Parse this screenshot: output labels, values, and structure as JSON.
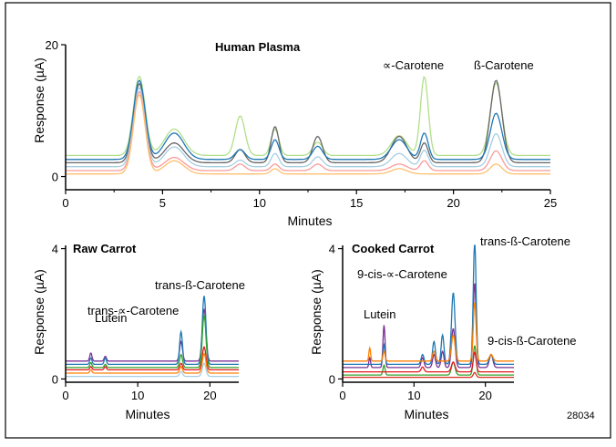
{
  "figure_id": "28034",
  "colors": {
    "frame": "#000000",
    "series": [
      "#7b3294",
      "#1f78b4",
      "#33a02c",
      "#e31a1c",
      "#ff7f00",
      "#d7301f",
      "#a6cee3",
      "#fdbf6f",
      "#b2df8a",
      "#fb9a99",
      "#666666",
      "#e6ab02"
    ]
  },
  "chart_data": [
    {
      "id": "top",
      "type": "line",
      "title": "Human Plasma",
      "xlabel": "Minutes",
      "ylabel": "Response (µA)",
      "xlim": [
        0,
        25
      ],
      "ylim": [
        -2,
        20
      ],
      "xticks": [
        0,
        5,
        10,
        15,
        20,
        25
      ],
      "yticks": [
        0,
        20
      ],
      "annotations": [
        {
          "text": "∝-Carotene",
          "x": 18.5,
          "y": 12.5
        },
        {
          "text": "ß-Carotene",
          "x": 22.2,
          "y": 12.5
        }
      ],
      "series": [
        {
          "color": "#b2df8a",
          "baseline": 3.2,
          "peaks": [
            [
              3.8,
              12,
              0.3
            ],
            [
              5.6,
              4,
              0.5
            ],
            [
              9.0,
              6,
              0.25
            ],
            [
              10.8,
              4,
              0.2
            ],
            [
              13,
              2,
              0.25
            ],
            [
              17.2,
              3,
              0.4
            ],
            [
              18.5,
              12,
              0.2
            ],
            [
              22.2,
              11,
              0.3
            ]
          ]
        },
        {
          "color": "#666666",
          "baseline": 2.1,
          "peaks": [
            [
              3.8,
              12,
              0.3
            ],
            [
              5.6,
              3,
              0.5
            ],
            [
              9.0,
              2,
              0.25
            ],
            [
              10.8,
              5.5,
              0.2
            ],
            [
              13,
              4,
              0.25
            ],
            [
              17.2,
              4,
              0.4
            ],
            [
              18.5,
              3,
              0.2
            ],
            [
              22.2,
              12.5,
              0.3
            ]
          ]
        },
        {
          "color": "#a6cee3",
          "baseline": 1.5,
          "peaks": [
            [
              3.8,
              12,
              0.3
            ],
            [
              5.6,
              3,
              0.5
            ],
            [
              9.0,
              1,
              0.25
            ],
            [
              10.8,
              2,
              0.2
            ],
            [
              13,
              1.5,
              0.25
            ],
            [
              17.2,
              2,
              0.4
            ],
            [
              18.5,
              2.5,
              0.2
            ],
            [
              22.2,
              5,
              0.3
            ]
          ]
        },
        {
          "color": "#fb9a99",
          "baseline": 0.9,
          "peaks": [
            [
              3.8,
              12,
              0.3
            ],
            [
              5.6,
              2,
              0.5
            ],
            [
              9.0,
              1,
              0.25
            ],
            [
              10.8,
              1,
              0.2
            ],
            [
              13,
              1,
              0.25
            ],
            [
              17.2,
              1,
              0.4
            ],
            [
              18.5,
              1.5,
              0.2
            ],
            [
              22.2,
              3,
              0.3
            ]
          ]
        },
        {
          "color": "#fdbf6f",
          "baseline": 0.4,
          "peaks": [
            [
              3.8,
              12,
              0.3
            ],
            [
              5.6,
              2,
              0.5
            ],
            [
              10.8,
              0.8,
              0.2
            ],
            [
              17.2,
              0.8,
              0.4
            ],
            [
              22.2,
              1.5,
              0.3
            ]
          ]
        },
        {
          "color": "#1f78b4",
          "baseline": 2.6,
          "peaks": [
            [
              3.8,
              12,
              0.3
            ],
            [
              5.6,
              4,
              0.5
            ],
            [
              9.0,
              1.5,
              0.25
            ],
            [
              10.8,
              3,
              0.2
            ],
            [
              13,
              2,
              0.25
            ],
            [
              17.2,
              3,
              0.4
            ],
            [
              18.5,
              4,
              0.2
            ],
            [
              22.2,
              7,
              0.3
            ]
          ]
        }
      ]
    },
    {
      "id": "raw",
      "type": "line",
      "title": "Raw Carrot",
      "xlabel": "Minutes",
      "ylabel": "Response (µA)",
      "xlim": [
        0,
        24
      ],
      "ylim": [
        -0.1,
        4.1
      ],
      "xticks": [
        0,
        10,
        20
      ],
      "yticks": [
        0,
        4
      ],
      "annotations": [
        {
          "text": "Lutein",
          "x": 3.5,
          "y": 0.75
        },
        {
          "text": "trans-∝-Carotene",
          "x": 16,
          "y": 2.0
        },
        {
          "text": "trans-ß-Carotene",
          "x": 19.2,
          "y": 2.75
        }
      ],
      "series": [
        {
          "color": "#7b3294",
          "baseline": 0.55,
          "peaks": [
            [
              3.5,
              0.25,
              0.15
            ],
            [
              5.5,
              0.15,
              0.15
            ],
            [
              16,
              0.6,
              0.2
            ],
            [
              19.2,
              1.6,
              0.25
            ]
          ]
        },
        {
          "color": "#1f78b4",
          "baseline": 0.45,
          "peaks": [
            [
              3.5,
              0.2,
              0.15
            ],
            [
              5.5,
              0.2,
              0.15
            ],
            [
              16,
              1.0,
              0.2
            ],
            [
              19.2,
              2.1,
              0.25
            ]
          ]
        },
        {
          "color": "#33a02c",
          "baseline": 0.35,
          "peaks": [
            [
              3.5,
              0.15,
              0.15
            ],
            [
              5.5,
              0.1,
              0.15
            ],
            [
              16,
              0.4,
              0.2
            ],
            [
              19.2,
              1.6,
              0.25
            ]
          ]
        },
        {
          "color": "#e31a1c",
          "baseline": 0.28,
          "peaks": [
            [
              3.5,
              0.1,
              0.15
            ],
            [
              5.5,
              0.1,
              0.15
            ],
            [
              16,
              0.2,
              0.2
            ],
            [
              19.2,
              0.7,
              0.25
            ]
          ]
        },
        {
          "color": "#ff7f00",
          "baseline": 0.18,
          "peaks": [
            [
              3.5,
              0.1,
              0.15
            ],
            [
              16,
              0.2,
              0.2
            ],
            [
              19.2,
              0.6,
              0.25
            ]
          ]
        },
        {
          "color": "#a6cee3",
          "baseline": 0.08,
          "peaks": [
            [
              16,
              0.15,
              0.2
            ],
            [
              19.2,
              0.4,
              0.25
            ]
          ]
        }
      ]
    },
    {
      "id": "cooked",
      "type": "line",
      "title": "Cooked Carrot",
      "xlabel": "Minutes",
      "ylabel": "Response (µA)",
      "xlim": [
        0,
        24
      ],
      "ylim": [
        -0.1,
        4.1
      ],
      "xticks": [
        0,
        10,
        20
      ],
      "yticks": [
        0,
        4
      ],
      "annotations": [
        {
          "text": "Lutein",
          "x": 5.8,
          "y": 1.5
        },
        {
          "text": "9-cis-∝-Carotene",
          "x": 15.5,
          "y": 2.4
        },
        {
          "text": "trans-ß-Carotene",
          "x": 18.5,
          "y": 3.9
        },
        {
          "text": "9-cis-ß-Carotene",
          "x": 20.8,
          "y": 0.8
        }
      ],
      "series": [
        {
          "color": "#7b3294",
          "baseline": 0.35,
          "peaks": [
            [
              3.8,
              0.3,
              0.12
            ],
            [
              5.8,
              1.3,
              0.15
            ],
            [
              11.2,
              0.3,
              0.2
            ],
            [
              12.8,
              0.4,
              0.2
            ],
            [
              14,
              0.5,
              0.2
            ],
            [
              15.5,
              1.2,
              0.25
            ],
            [
              18.5,
              2.6,
              0.2
            ],
            [
              20.8,
              0.4,
              0.25
            ]
          ]
        },
        {
          "color": "#1f78b4",
          "baseline": 0.45,
          "peaks": [
            [
              5.8,
              0.6,
              0.15
            ],
            [
              11.2,
              0.3,
              0.2
            ],
            [
              12.8,
              0.7,
              0.2
            ],
            [
              14,
              0.9,
              0.2
            ],
            [
              15.5,
              2.2,
              0.25
            ],
            [
              18.5,
              3.8,
              0.2
            ],
            [
              20.8,
              0.3,
              0.25
            ]
          ]
        },
        {
          "color": "#ff7f00",
          "baseline": 0.55,
          "peaks": [
            [
              3.8,
              0.4,
              0.12
            ],
            [
              5.8,
              0.3,
              0.15
            ],
            [
              12.8,
              0.3,
              0.2
            ],
            [
              15.5,
              0.8,
              0.25
            ],
            [
              18.5,
              1.8,
              0.2
            ],
            [
              20.8,
              0.2,
              0.25
            ]
          ]
        },
        {
          "color": "#33a02c",
          "baseline": 0.12,
          "peaks": [
            [
              5.8,
              0.3,
              0.15
            ],
            [
              15.5,
              0.4,
              0.25
            ],
            [
              18.5,
              0.9,
              0.2
            ]
          ]
        },
        {
          "color": "#e31a1c",
          "baseline": 0.22,
          "peaks": [
            [
              11.2,
              0.15,
              0.2
            ],
            [
              15.5,
              0.3,
              0.25
            ],
            [
              18.5,
              0.6,
              0.2
            ]
          ]
        },
        {
          "color": "#d7301f",
          "baseline": 0.05,
          "peaks": [
            [
              18.5,
              0.15,
              0.2
            ]
          ]
        }
      ]
    }
  ]
}
